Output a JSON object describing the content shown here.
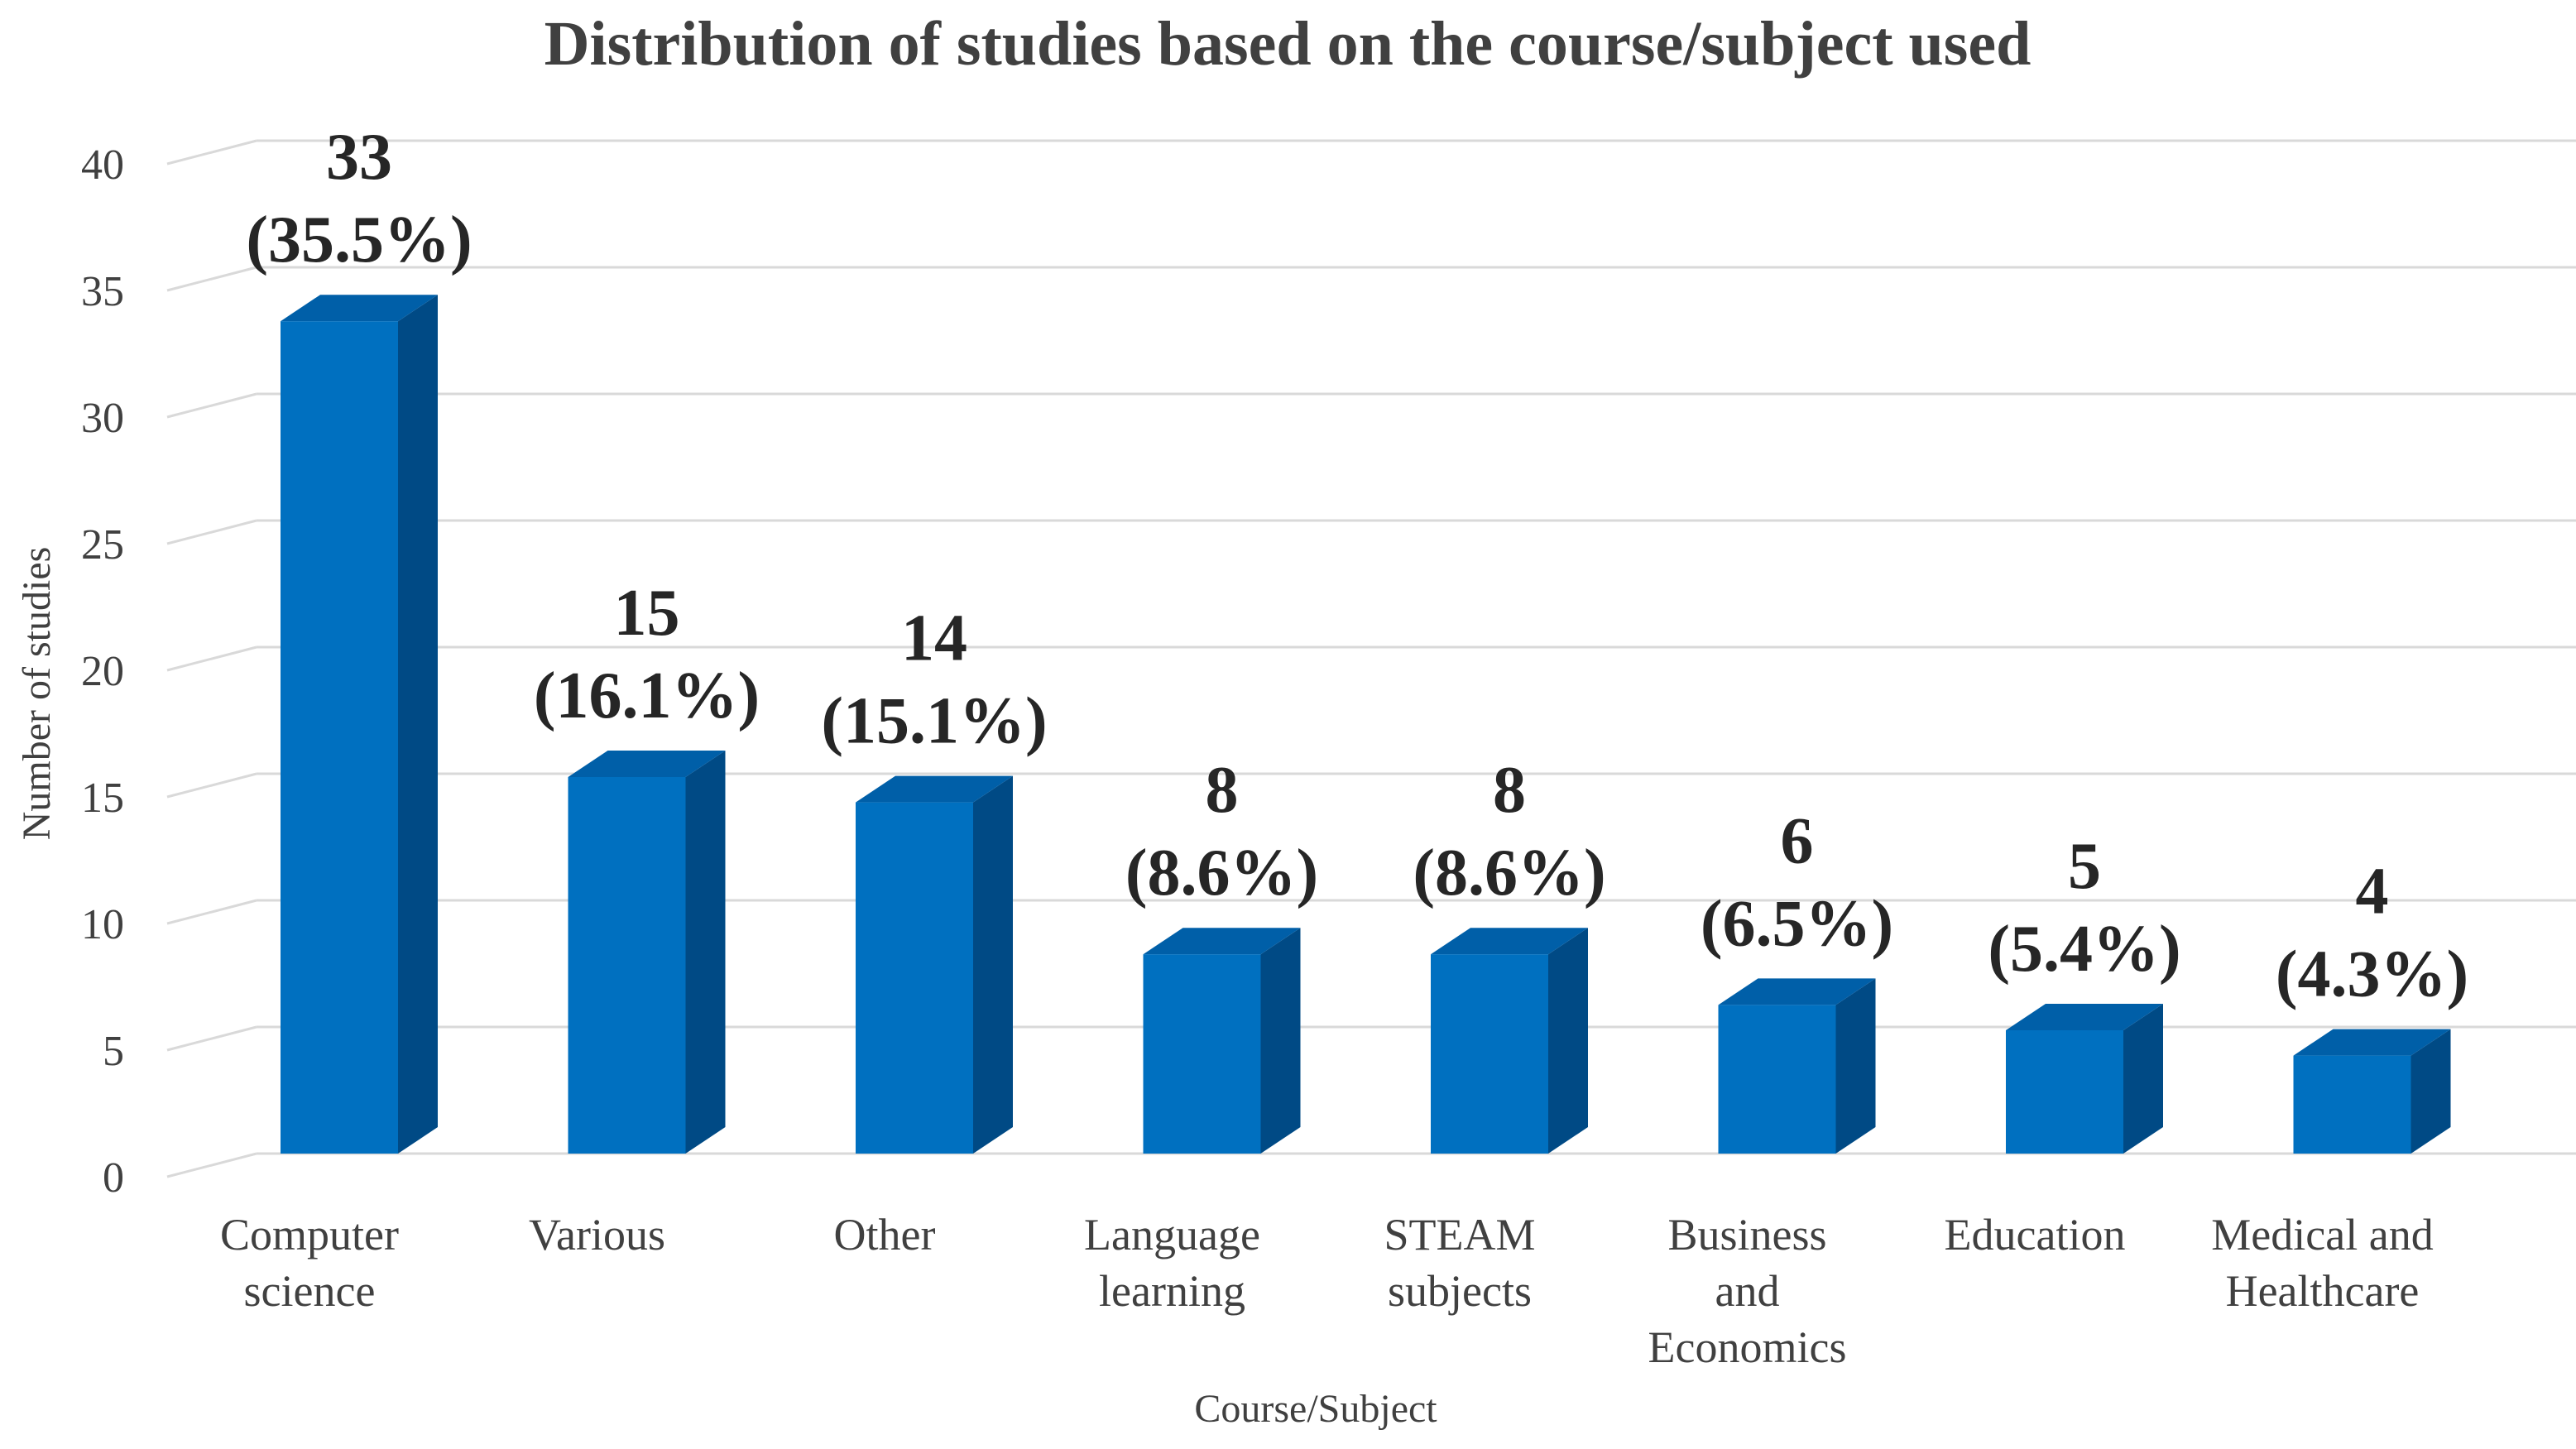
{
  "chart_data": {
    "type": "bar",
    "title": "Distribution of studies based on the course/subject used",
    "xlabel": "Course/Subject",
    "ylabel": "Number of studies",
    "ylim": [
      0,
      40
    ],
    "yticks": [
      "0",
      "5",
      "10",
      "15",
      "20",
      "25",
      "30",
      "35",
      "40"
    ],
    "grid": true,
    "style": "3d-column",
    "colors": {
      "bar_front": "#0070c0",
      "bar_top": "#005fa8",
      "bar_side": "#004a85",
      "grid": "#d9d9d9",
      "text": "#404040"
    },
    "categories": [
      [
        "Computer",
        "science"
      ],
      [
        "Various"
      ],
      [
        "Other"
      ],
      [
        "Language",
        "learning"
      ],
      [
        "STEAM",
        "subjects"
      ],
      [
        "Business",
        "and",
        "Economics"
      ],
      [
        "Education"
      ],
      [
        "Medical and",
        "Healthcare"
      ]
    ],
    "values": [
      33,
      15,
      14,
      8,
      8,
      6,
      5,
      4
    ],
    "data_labels": [
      {
        "count": "33",
        "percent": "(35.5%)"
      },
      {
        "count": "15",
        "percent": "(16.1%)"
      },
      {
        "count": "14",
        "percent": "(15.1%)"
      },
      {
        "count": "8",
        "percent": "(8.6%)"
      },
      {
        "count": "8",
        "percent": "(8.6%)"
      },
      {
        "count": "6",
        "percent": "(6.5%)"
      },
      {
        "count": "5",
        "percent": "(5.4%)"
      },
      {
        "count": "4",
        "percent": "(4.3%)"
      }
    ]
  }
}
